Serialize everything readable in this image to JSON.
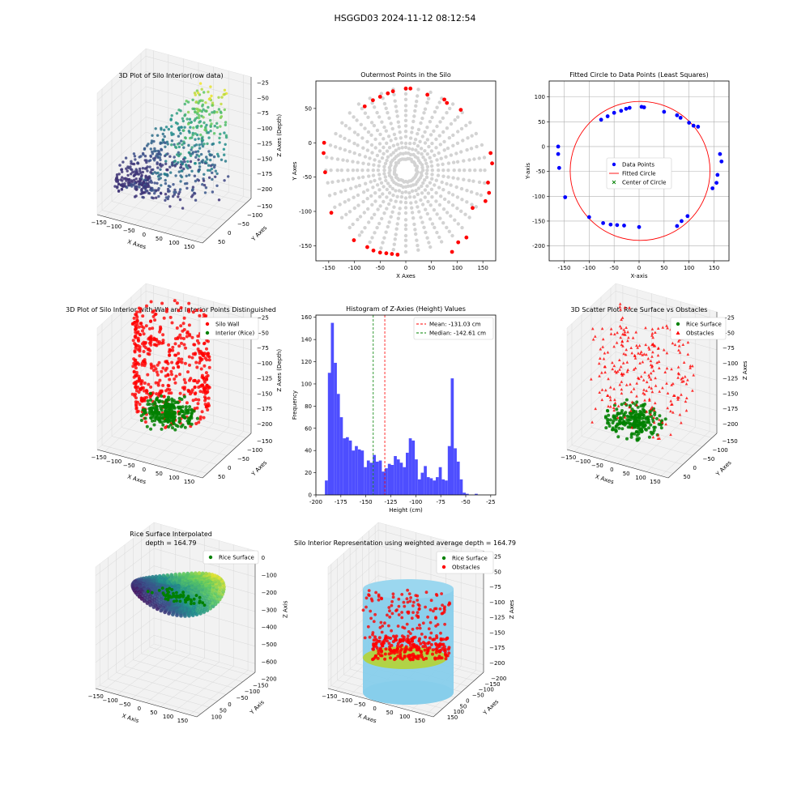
{
  "figure": {
    "suptitle": "HSGGD03 2024-11-12 08:12:54"
  },
  "colors": {
    "wall": "#ff0000",
    "rice": "#008000",
    "outer_point": "#ff0000",
    "inner_point": "#d3d3d3",
    "data_point": "#0000ff",
    "fitted_circle": "#ff0000",
    "hist_bar": "#4444ff",
    "mean_line": "#ff0000",
    "median_line": "#008000",
    "silo_cylinder": "#87ceeb"
  },
  "chart_data": [
    {
      "id": "p1",
      "type": "scatter",
      "projection": "3d",
      "title": "3D Plot of Silo Interior(row data)",
      "xlabel": "X Axes",
      "ylabel": "Y Axes",
      "zlabel": "Z Axes (Depth)",
      "xticks": [
        "−150",
        "−100",
        "−50",
        "0",
        "50",
        "100",
        "150"
      ],
      "yticks": [
        "50",
        "0",
        "−50",
        "−100",
        "−150"
      ],
      "zticks": [
        "−25",
        "−50",
        "−75",
        "−100",
        "−125",
        "−150",
        "−175",
        "−200"
      ],
      "colormap": "viridis",
      "grid": true
    },
    {
      "id": "p2",
      "type": "scatter",
      "title": "Outermost Points in the Silo",
      "xlabel": "X Axes",
      "ylabel": "Y Axes",
      "xlim": [
        -175,
        175
      ],
      "ylim": [
        -172,
        90
      ],
      "xticks": [
        -150,
        -100,
        -50,
        0,
        50,
        100,
        150
      ],
      "yticks": [
        50,
        0,
        -50,
        -100,
        -150
      ],
      "outer_points": {
        "x": [
          -159,
          -160,
          -157,
          -145,
          -101,
          -80,
          -64,
          -50,
          -35,
          -25,
          0,
          -75,
          -63,
          -50,
          -38,
          -27,
          -16,
          9,
          42,
          75,
          80,
          90,
          102,
          107,
          118,
          130,
          165,
          160,
          168,
          162,
          155
        ],
        "y": [
          0,
          -15,
          -43,
          -102,
          -142,
          53,
          62,
          67,
          72,
          75,
          79,
          -152,
          -157,
          -160,
          -161,
          -162,
          -163,
          79,
          70,
          63,
          58,
          -159,
          -145,
          48,
          -138,
          -95,
          -15,
          -58,
          -30,
          -73,
          -85
        ]
      },
      "interior_points": "dense radial rays of light-grey points inside circle of radius ~160 centered near (0,-40)",
      "grid": false
    },
    {
      "id": "p3",
      "type": "scatter",
      "title": "Fitted Circle to Data Points (Least Squares)",
      "xlabel": "X-axis",
      "ylabel": "Y-axis",
      "xlim": [
        -180,
        180
      ],
      "ylim": [
        -230,
        132
      ],
      "xticks": [
        -150,
        -100,
        -50,
        0,
        50,
        100,
        150
      ],
      "yticks": [
        100,
        50,
        0,
        -50,
        -100,
        -150,
        -200
      ],
      "data_points": {
        "x": [
          -162,
          -162,
          -160,
          -148,
          -100,
          -76,
          -63,
          -50,
          -36,
          -26,
          -19,
          5,
          10,
          50,
          76,
          83,
          100,
          109,
          118,
          155,
          157,
          162,
          165,
          -72,
          -57,
          -44,
          -30,
          0,
          76,
          85,
          97,
          147
        ],
        "y": [
          0,
          -15,
          -43,
          -102,
          -142,
          54,
          61,
          68,
          72,
          76,
          78,
          80,
          79,
          70,
          63,
          58,
          48,
          42,
          40,
          -73,
          -57,
          -15,
          -30,
          -154,
          -157,
          -158,
          -159,
          -162,
          -160,
          -150,
          -140,
          -84
        ]
      },
      "fitted_circle": {
        "center": [
          2,
          -49
        ],
        "radius": 140
      },
      "legend": [
        "Data Points",
        "Fitted Circle",
        "Center of Circle"
      ],
      "legend_position": "center",
      "grid": true
    },
    {
      "id": "p4",
      "type": "scatter",
      "projection": "3d",
      "title": "3D Plot of Silo Interior with Wall and Interior Points Distinguished",
      "xlabel": "X Axes",
      "ylabel": "Y Axes",
      "zlabel": "Z Axes (Depth)",
      "xticks": [
        "−150",
        "−100",
        "−50",
        "0",
        "50",
        "100",
        "150"
      ],
      "yticks": [
        "50",
        "0",
        "−50",
        "−100",
        "−150"
      ],
      "zticks": [
        "−25",
        "−50",
        "−75",
        "−100",
        "−125",
        "−150",
        "−175",
        "−200"
      ],
      "legend": [
        "Silo Wall",
        "Interior (Rice)"
      ],
      "legend_position": "top-right",
      "grid": true
    },
    {
      "id": "p5",
      "type": "bar",
      "title": "Histogram of Z-Axies (Height) Values",
      "xlabel": "Height (cm)",
      "ylabel": "Frequency",
      "xlim": [
        -200,
        -20
      ],
      "ylim": [
        0,
        162
      ],
      "xticks": [
        -200,
        -175,
        -150,
        -125,
        -100,
        -75,
        -50,
        -25
      ],
      "yticks": [
        0,
        20,
        40,
        60,
        80,
        100,
        120,
        140,
        160
      ],
      "bin_start": -191,
      "bin_width": 3,
      "values": [
        13,
        110,
        155,
        119,
        91,
        70,
        51,
        52,
        49,
        40,
        44,
        41,
        40,
        25,
        31,
        29,
        36,
        30,
        31,
        21,
        24,
        28,
        27,
        35,
        32,
        29,
        25,
        38,
        51,
        49,
        32,
        14,
        20,
        26,
        16,
        15,
        13,
        16,
        25,
        14,
        13,
        44,
        105,
        42,
        30,
        14,
        2,
        1,
        0,
        0,
        1
      ],
      "mean": -131.03,
      "median": -142.61,
      "legend": [
        "Mean: -131.03 cm",
        "Median: -142.61 cm"
      ],
      "legend_position": "top-right"
    },
    {
      "id": "p6",
      "type": "scatter",
      "projection": "3d",
      "title": "3D Scatter Plot: Rice Surface vs Obstacles",
      "xlabel": "X Axes",
      "ylabel": "Y Axes",
      "zlabel": "Z Axes",
      "xticks": [
        "−150",
        "−100",
        "−50",
        "0",
        "50",
        "100",
        "150"
      ],
      "yticks": [
        "50",
        "0",
        "−50",
        "−100",
        "−150"
      ],
      "zticks": [
        "−25",
        "−50",
        "−75",
        "−100",
        "−125",
        "−150",
        "−175",
        "−200"
      ],
      "legend": [
        "Rice Surface",
        "Obstacles"
      ],
      "legend_position": "top-right",
      "grid": true
    },
    {
      "id": "p7",
      "type": "area",
      "projection": "3d",
      "title": "Rice Surface Interpolated",
      "subtitle": "depth = 164.79",
      "xlabel": "X Axis",
      "ylabel": "Y Axis",
      "zlabel": "Z Axis",
      "xticks": [
        "−150",
        "−100",
        "−50",
        "0",
        "50",
        "100",
        "150"
      ],
      "yticks": [
        "100",
        "50",
        "0",
        "−50",
        "−100",
        "−150",
        "−200"
      ],
      "zticks": [
        "0",
        "−100",
        "−200",
        "−300",
        "−400",
        "−500",
        "−600"
      ],
      "legend": [
        "Rice Surface"
      ],
      "legend_position": "top-right",
      "grid": true
    },
    {
      "id": "p8",
      "type": "scatter",
      "projection": "3d",
      "title": "Silo Interior Representation using weighted average depth = 164.79",
      "xlabel": "X Axes",
      "ylabel": "Y Axes",
      "zlabel": "Z Axes",
      "xticks": [
        "−150",
        "−100",
        "−50",
        "0",
        "50",
        "100",
        "150"
      ],
      "yticks": [
        "150",
        "100",
        "50",
        "0",
        "−50",
        "−100",
        "−150",
        "−200"
      ],
      "zticks": [
        "−25",
        "−50",
        "−75",
        "−100",
        "−125",
        "−150",
        "−175",
        "−200"
      ],
      "legend": [
        "Rice Surface",
        "Obstacles"
      ],
      "legend_position": "top",
      "grid": true
    }
  ]
}
